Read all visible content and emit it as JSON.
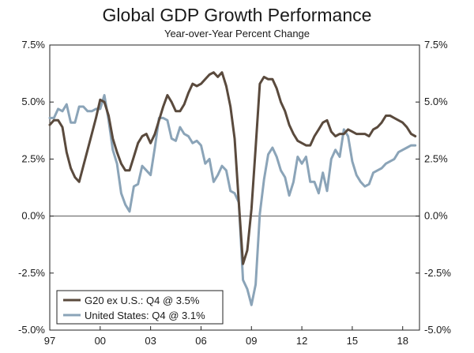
{
  "chart_data": {
    "type": "line",
    "title": "Global GDP Growth Performance",
    "subtitle": "Year-over-Year Percent Change",
    "xlabel": "",
    "ylabel": "",
    "xlim": [
      1997.0,
      2019.0
    ],
    "ylim": [
      -5.0,
      7.5
    ],
    "y_ticks": [
      7.5,
      5.0,
      2.5,
      0.0,
      -2.5,
      -5.0
    ],
    "y_tick_labels": [
      "7.5%",
      "5.0%",
      "2.5%",
      "0.0%",
      "-2.5%",
      "-5.0%"
    ],
    "x_ticks": [
      1997,
      2000,
      2003,
      2006,
      2009,
      2012,
      2015,
      2018
    ],
    "x_tick_labels": [
      "97",
      "00",
      "03",
      "06",
      "09",
      "12",
      "15",
      "18"
    ],
    "grid": false,
    "legend_position": "bottom-left",
    "colors": {
      "g20": "#5a4a3d",
      "us": "#8ba4b8",
      "axis": "#222222",
      "zero": "#555555"
    },
    "x": [
      1997.0,
      1997.25,
      1997.5,
      1997.75,
      1998.0,
      1998.25,
      1998.5,
      1998.75,
      1999.0,
      1999.25,
      1999.5,
      1999.75,
      2000.0,
      2000.25,
      2000.5,
      2000.75,
      2001.0,
      2001.25,
      2001.5,
      2001.75,
      2002.0,
      2002.25,
      2002.5,
      2002.75,
      2003.0,
      2003.25,
      2003.5,
      2003.75,
      2004.0,
      2004.25,
      2004.5,
      2004.75,
      2005.0,
      2005.25,
      2005.5,
      2005.75,
      2006.0,
      2006.25,
      2006.5,
      2006.75,
      2007.0,
      2007.25,
      2007.5,
      2007.75,
      2008.0,
      2008.25,
      2008.5,
      2008.75,
      2009.0,
      2009.25,
      2009.5,
      2009.75,
      2010.0,
      2010.25,
      2010.5,
      2010.75,
      2011.0,
      2011.25,
      2011.5,
      2011.75,
      2012.0,
      2012.25,
      2012.5,
      2012.75,
      2013.0,
      2013.25,
      2013.5,
      2013.75,
      2014.0,
      2014.25,
      2014.5,
      2014.75,
      2015.0,
      2015.25,
      2015.5,
      2015.75,
      2016.0,
      2016.25,
      2016.5,
      2016.75,
      2017.0,
      2017.25,
      2017.5,
      2017.75,
      2018.0,
      2018.25,
      2018.5,
      2018.75
    ],
    "series": [
      {
        "name": "G20 ex U.S.",
        "legend_label": "G20 ex U.S.: Q4 @ 3.5%",
        "values": [
          4.0,
          4.2,
          4.2,
          3.9,
          2.8,
          2.1,
          1.7,
          1.5,
          2.2,
          2.9,
          3.6,
          4.3,
          5.1,
          5.0,
          4.4,
          3.4,
          2.8,
          2.3,
          2.0,
          2.0,
          2.6,
          3.2,
          3.5,
          3.6,
          3.2,
          3.6,
          4.2,
          4.8,
          5.3,
          5.0,
          4.6,
          4.6,
          4.9,
          5.4,
          5.8,
          5.7,
          5.8,
          6.0,
          6.2,
          6.3,
          6.1,
          6.3,
          5.7,
          4.8,
          3.4,
          0.6,
          -2.1,
          -1.5,
          0.3,
          3.0,
          5.8,
          6.1,
          6.0,
          6.0,
          5.6,
          5.0,
          4.6,
          4.0,
          3.6,
          3.3,
          3.2,
          3.1,
          3.1,
          3.5,
          3.8,
          4.1,
          4.2,
          3.7,
          3.5,
          3.6,
          3.6,
          3.8,
          3.7,
          3.6,
          3.6,
          3.6,
          3.5,
          3.8,
          3.9,
          4.1,
          4.4,
          4.4,
          4.3,
          4.2,
          4.1,
          3.9,
          3.6,
          3.5
        ]
      },
      {
        "name": "United States",
        "legend_label": "United States: Q4 @ 3.1%",
        "values": [
          4.3,
          4.3,
          4.7,
          4.6,
          4.9,
          4.1,
          4.1,
          4.8,
          4.8,
          4.6,
          4.6,
          4.7,
          4.7,
          5.3,
          4.2,
          2.9,
          2.3,
          1.0,
          0.5,
          0.2,
          1.3,
          1.4,
          2.2,
          2.0,
          1.8,
          3.0,
          4.3,
          4.3,
          4.2,
          3.4,
          3.3,
          3.9,
          3.6,
          3.5,
          3.2,
          3.3,
          3.1,
          2.3,
          2.5,
          1.5,
          1.8,
          2.2,
          2.0,
          1.1,
          1.0,
          0.6,
          -2.8,
          -3.2,
          -3.9,
          -3.0,
          0.1,
          1.6,
          2.7,
          3.0,
          2.6,
          2.0,
          1.7,
          0.9,
          1.5,
          2.6,
          2.3,
          2.6,
          1.5,
          1.5,
          1.0,
          1.9,
          1.1,
          2.5,
          2.9,
          2.6,
          3.8,
          3.5,
          2.4,
          1.8,
          1.5,
          1.3,
          1.4,
          1.9,
          2.0,
          2.1,
          2.3,
          2.4,
          2.5,
          2.8,
          2.9,
          3.0,
          3.1,
          3.1
        ]
      }
    ]
  }
}
